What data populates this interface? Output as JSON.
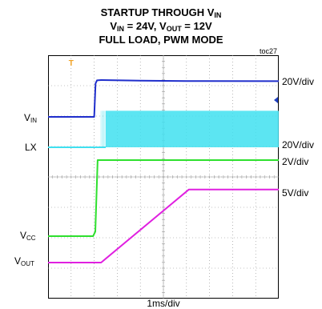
{
  "title": {
    "line1_main": "STARTUP THROUGH V",
    "line1_sub": "IN",
    "line2_a": "V",
    "line2_a_sub": "IN",
    "line2_b": " = 24V, V",
    "line2_b_sub": "OUT",
    "line2_c": " = 12V",
    "line3": "FULL LOAD, PWM MODE"
  },
  "tag": "toc27",
  "chart_data": {
    "type": "line",
    "x_unit": "ms",
    "x_scale_label": "1ms/div",
    "xlim": [
      0,
      10
    ],
    "grid": true,
    "series": [
      {
        "name": "VIN",
        "name_main": "V",
        "name_sub": "IN",
        "scale_label": "20V/div",
        "color": "#1f2ecc",
        "x": [
          0,
          2.0,
          2.06,
          2.12,
          2.3,
          4.0,
          6.0,
          10.0
        ],
        "y": [
          0,
          0,
          22,
          24,
          24.2,
          23.8,
          23.6,
          23.5
        ]
      },
      {
        "name": "LX",
        "scale_label": "20V/div",
        "color": "#40e0f0",
        "x": [
          0,
          2.4,
          2.5,
          10.0
        ],
        "y": [
          0,
          0,
          24,
          24
        ]
      },
      {
        "name": "VCC",
        "name_main": "V",
        "name_sub": "CC",
        "scale_label": "2V/div",
        "color": "#2ee02e",
        "x": [
          0,
          1.95,
          2.05,
          2.15,
          10.0
        ],
        "y": [
          0,
          0,
          0.3,
          5.0,
          5.0
        ]
      },
      {
        "name": "VOUT",
        "name_main": "V",
        "name_sub": "OUT",
        "scale_label": "5V/div",
        "color": "#e020e0",
        "x": [
          0,
          2.3,
          6.1,
          10.0
        ],
        "y": [
          0,
          0,
          12,
          12
        ]
      }
    ]
  }
}
